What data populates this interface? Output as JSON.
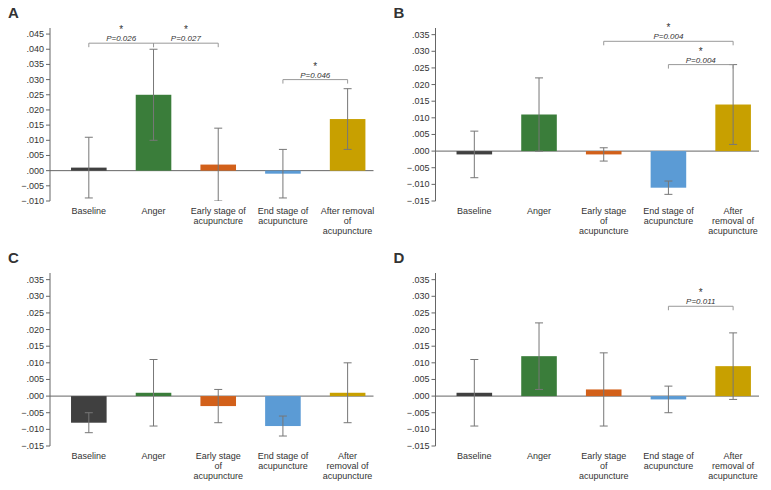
{
  "chart_data": [
    {
      "type": "bar",
      "title": "A",
      "categories": [
        "Baseline",
        "Anger",
        "Early stage of\nacupuncture",
        "End stage of\nacupuncture",
        "After removal\nof\nacupuncture"
      ],
      "values": [
        0.001,
        0.025,
        0.002,
        -0.001,
        0.017
      ],
      "errors": [
        0.01,
        0.015,
        0.012,
        0.008,
        0.01
      ],
      "colors": [
        "#404040",
        "#3a7d3a",
        "#d2601a",
        "#5b9bd5",
        "#c8a000"
      ],
      "ylim": [
        -0.01,
        0.047
      ],
      "yticks": [
        {
          "value": -0.01,
          "label": "−.010"
        },
        {
          "value": -0.005,
          "label": "−.005"
        },
        {
          "value": 0,
          "label": ".000"
        },
        {
          "value": 0.005,
          "label": ".005"
        },
        {
          "value": 0.01,
          "label": ".010"
        },
        {
          "value": 0.015,
          "label": ".015"
        },
        {
          "value": 0.02,
          "label": ".020"
        },
        {
          "value": 0.025,
          "label": ".025"
        },
        {
          "value": 0.03,
          "label": ".030"
        },
        {
          "value": 0.035,
          "label": ".035"
        },
        {
          "value": 0.04,
          "label": ".040"
        },
        {
          "value": 0.045,
          "label": ".045"
        }
      ],
      "grid": false,
      "annotations": [
        {
          "from": 0,
          "to": 1,
          "y": 0.042,
          "text": "P=0.026",
          "star": "*"
        },
        {
          "from": 1,
          "to": 2,
          "y": 0.042,
          "text": "P=0.027",
          "star": "*"
        },
        {
          "from": 3,
          "to": 4,
          "y": 0.03,
          "text": "P=0.046",
          "star": "*"
        }
      ]
    },
    {
      "type": "bar",
      "title": "B",
      "categories": [
        "Baseline",
        "Anger",
        "Early stage\nof\nacupuncture",
        "End stage of\nacupuncture",
        "After\nremoval of\nacupuncture"
      ],
      "values": [
        -0.001,
        0.011,
        -0.001,
        -0.011,
        0.014
      ],
      "errors": [
        0.007,
        0.011,
        0.002,
        0.002,
        0.012
      ],
      "colors": [
        "#404040",
        "#3a7d3a",
        "#d2601a",
        "#5b9bd5",
        "#c8a000"
      ],
      "ylim": [
        -0.015,
        0.037
      ],
      "yticks": [
        {
          "value": -0.015,
          "label": "−.015"
        },
        {
          "value": -0.01,
          "label": "−.010"
        },
        {
          "value": -0.005,
          "label": "−.005"
        },
        {
          "value": 0,
          "label": ".000"
        },
        {
          "value": 0.005,
          "label": ".005"
        },
        {
          "value": 0.01,
          "label": ".010"
        },
        {
          "value": 0.015,
          "label": ".015"
        },
        {
          "value": 0.02,
          "label": ".020"
        },
        {
          "value": 0.025,
          "label": ".025"
        },
        {
          "value": 0.03,
          "label": ".030"
        },
        {
          "value": 0.035,
          "label": ".035"
        }
      ],
      "grid": false,
      "annotations": [
        {
          "from": 2,
          "to": 4,
          "y": 0.033,
          "text": "P=0.004",
          "star": "*"
        },
        {
          "from": 3,
          "to": 4,
          "y": 0.026,
          "text": "P=0.004",
          "star": "*"
        }
      ]
    },
    {
      "type": "bar",
      "title": "C",
      "categories": [
        "Baseline",
        "Anger",
        "Early stage\nof\nacupuncture",
        "End stage of\nacupuncture",
        "After\nremoval of\nacupuncture"
      ],
      "values": [
        -0.008,
        0.001,
        -0.003,
        -0.009,
        0.001
      ],
      "errors": [
        0.003,
        0.01,
        0.005,
        0.003,
        0.009
      ],
      "colors": [
        "#404040",
        "#3a7d3a",
        "#d2601a",
        "#5b9bd5",
        "#c8a000"
      ],
      "ylim": [
        -0.015,
        0.037
      ],
      "yticks": [
        {
          "value": -0.015,
          "label": "−.015"
        },
        {
          "value": -0.01,
          "label": "−.010"
        },
        {
          "value": -0.005,
          "label": "−.005"
        },
        {
          "value": 0,
          "label": ".000"
        },
        {
          "value": 0.005,
          "label": ".005"
        },
        {
          "value": 0.01,
          "label": ".010"
        },
        {
          "value": 0.015,
          "label": ".015"
        },
        {
          "value": 0.02,
          "label": ".020"
        },
        {
          "value": 0.025,
          "label": ".025"
        },
        {
          "value": 0.03,
          "label": ".030"
        },
        {
          "value": 0.035,
          "label": ".035"
        }
      ],
      "grid": false,
      "annotations": []
    },
    {
      "type": "bar",
      "title": "D",
      "categories": [
        "Baseline",
        "Anger",
        "Early stage\nof\nacupuncture",
        "End stage of\nacupuncture",
        "After\nremoval of\nacupuncture"
      ],
      "values": [
        0.001,
        0.012,
        0.002,
        -0.001,
        0.009
      ],
      "errors": [
        0.01,
        0.01,
        0.011,
        0.004,
        0.01
      ],
      "colors": [
        "#404040",
        "#3a7d3a",
        "#d2601a",
        "#5b9bd5",
        "#c8a000"
      ],
      "ylim": [
        -0.015,
        0.037
      ],
      "yticks": [
        {
          "value": -0.015,
          "label": "−.015"
        },
        {
          "value": -0.01,
          "label": "−.010"
        },
        {
          "value": -0.005,
          "label": "−.005"
        },
        {
          "value": 0,
          "label": ".000"
        },
        {
          "value": 0.005,
          "label": ".005"
        },
        {
          "value": 0.01,
          "label": ".010"
        },
        {
          "value": 0.015,
          "label": ".015"
        },
        {
          "value": 0.02,
          "label": ".020"
        },
        {
          "value": 0.025,
          "label": ".025"
        },
        {
          "value": 0.03,
          "label": ".030"
        },
        {
          "value": 0.035,
          "label": ".035"
        }
      ],
      "grid": false,
      "annotations": [
        {
          "from": 3,
          "to": 4,
          "y": 0.027,
          "text": "P=0.011",
          "star": "*"
        }
      ]
    }
  ]
}
